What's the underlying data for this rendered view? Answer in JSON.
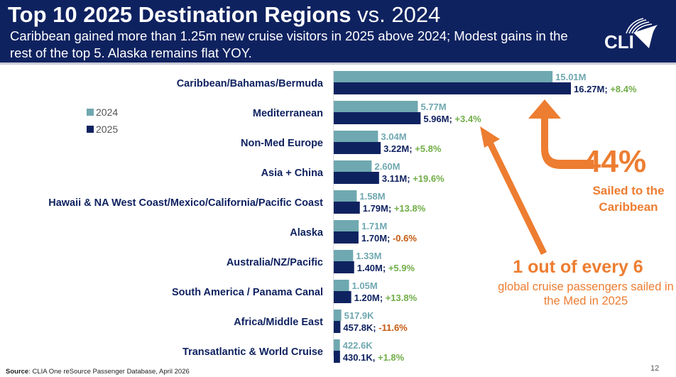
{
  "header": {
    "title_bold": "Top 10 2025 Destination Regions",
    "title_light": "vs. 2024",
    "subtitle": "Caribbean gained more than 1.25m new cruise visitors in 2025 above 2024; Modest gains in the rest of the top 5. Alaska remains flat YOY.",
    "logo_text": "CLIA"
  },
  "legend": [
    {
      "label": "2024",
      "color": "#6fa8b0"
    },
    {
      "label": "2025",
      "color": "#0f2260"
    }
  ],
  "chart_data": {
    "type": "bar",
    "orientation": "horizontal",
    "title": "Top 10 2025 Destination Regions vs. 2024",
    "xlabel": "",
    "ylabel": "",
    "units": "passengers (millions)",
    "xlim": [
      0,
      16.27
    ],
    "grid": false,
    "legend_position": "left",
    "categories": [
      "Caribbean/Bahamas/Bermuda",
      "Mediterranean",
      "Non-Med Europe",
      "Asia + China",
      "Hawaii & NA West Coast/Mexico/California/Pacific Coast",
      "Alaska",
      "Australia/NZ/Pacific",
      "South America / Panama Canal",
      "Africa/Middle East",
      "Transatlantic & World Cruise"
    ],
    "series": [
      {
        "name": "2024",
        "color": "#6fa8b0",
        "values": [
          15.01,
          5.77,
          3.04,
          2.6,
          1.58,
          1.71,
          1.33,
          1.05,
          0.5179,
          0.4226
        ],
        "labels": [
          "15.01M",
          "5.77M",
          "3.04M",
          "2.60M",
          "1.58M",
          "1.71M",
          "1.33M",
          "1.05M",
          "517.9K",
          "422.6K"
        ]
      },
      {
        "name": "2025",
        "color": "#0f2260",
        "values": [
          16.27,
          5.96,
          3.22,
          3.11,
          1.79,
          1.7,
          1.4,
          1.2,
          0.4578,
          0.4301
        ],
        "labels": [
          "16.27M",
          "5.96M",
          "3.22M",
          "3.11M",
          "1.79M",
          "1.70M",
          "1.40M",
          "1.20M",
          "457.8K",
          "430.1K"
        ],
        "separators": [
          ";",
          ";",
          ";",
          ";",
          ";",
          ";",
          ";",
          ";",
          ";",
          ","
        ],
        "changes": [
          "+8.4%",
          "+3.4%",
          "+5.8%",
          "+19.6%",
          "+13.8%",
          "-0.6%",
          "+5.9%",
          "+13.8%",
          "-11.6%",
          "+1.8%"
        ]
      }
    ],
    "change_colors": {
      "positive": "#70ad47",
      "negative": "#c55a11"
    },
    "annotations": [
      {
        "big": "44%",
        "text": "Sailed to the Caribbean",
        "color": "#ed7d31"
      },
      {
        "big": "1 out of every 6",
        "text": "global cruise passengers sailed in the Med in 2025",
        "color": "#ed7d31"
      }
    ]
  },
  "footer": {
    "source_label": "Source",
    "source_text": ": CLIA One reSource Passenger Database, April 2026",
    "page_number": "12"
  }
}
